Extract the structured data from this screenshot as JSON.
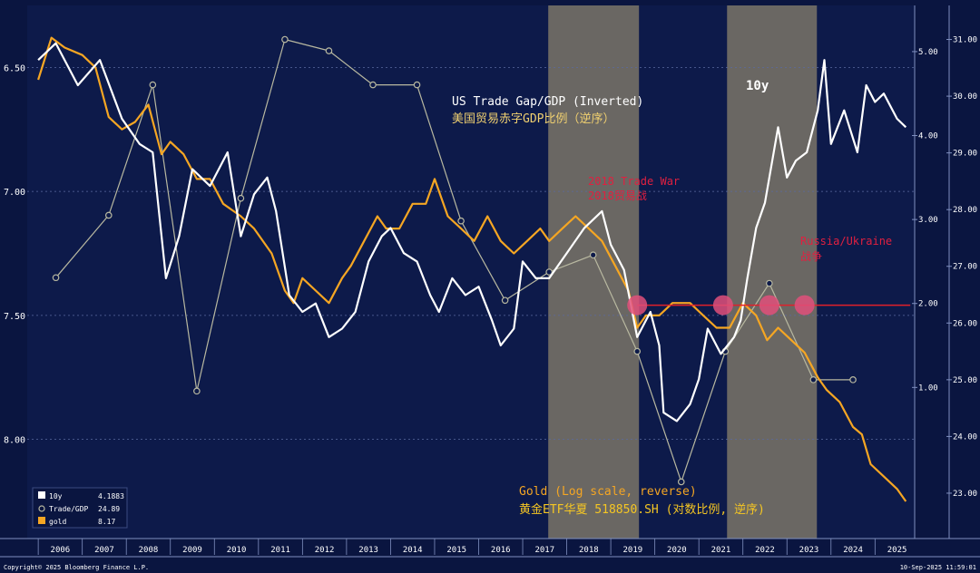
{
  "chart_data": {
    "type": "line",
    "x_tick_labels": [
      "2006",
      "2007",
      "2008",
      "2009",
      "2010",
      "2011",
      "2012",
      "2013",
      "2014",
      "2015",
      "2016",
      "2017",
      "2018",
      "2019",
      "2020",
      "2021",
      "2022",
      "2023",
      "2024",
      "2025"
    ],
    "left_axis": {
      "ticks": [
        "6.50",
        "7.00",
        "7.50",
        "8.00"
      ],
      "range": [
        6.25,
        8.4
      ],
      "note": "gold log scale, reversed"
    },
    "right_outer_axis": {
      "ticks": [
        "31.00",
        "30.00",
        "29.00",
        "28.00",
        "27.00",
        "26.00",
        "25.00",
        "24.00",
        "23.00"
      ],
      "range": [
        31.6,
        22.2
      ],
      "note": "Trade/GDP inverted"
    },
    "right_inner_axis": {
      "ticks": [
        "5.00",
        "4.00",
        "3.00",
        "2.00",
        "1.00"
      ],
      "range": [
        5.55,
        -0.8
      ],
      "note": "10y yield"
    },
    "shaded_periods": [
      [
        2017.58,
        2019.64
      ],
      [
        2021.64,
        2023.68
      ]
    ],
    "horizontal_line": {
      "value": 1.98,
      "axis": "right_inner",
      "from": 2019.6,
      "to": 2025.8,
      "color": "#e0202a"
    },
    "markers": [
      {
        "x": 2019.6,
        "value": 1.98
      },
      {
        "x": 2021.55,
        "value": 1.98
      },
      {
        "x": 2022.6,
        "value": 1.98
      },
      {
        "x": 2023.4,
        "value": 1.98
      }
    ],
    "series": [
      {
        "name": "Trade/GDP",
        "axis": "right_outer",
        "color": "#b8b8a0",
        "points": [
          [
            2006.4,
            26.8
          ],
          [
            2007.6,
            27.9
          ],
          [
            2008.6,
            30.2
          ],
          [
            2009.6,
            24.8
          ],
          [
            2010.6,
            28.2
          ],
          [
            2011.6,
            31.0
          ],
          [
            2012.6,
            30.8
          ],
          [
            2013.6,
            30.2
          ],
          [
            2014.6,
            30.2
          ],
          [
            2015.6,
            27.8
          ],
          [
            2016.6,
            26.4
          ],
          [
            2017.6,
            26.9
          ],
          [
            2018.6,
            27.2
          ],
          [
            2019.6,
            25.5
          ],
          [
            2020.6,
            23.2
          ],
          [
            2021.6,
            25.5
          ],
          [
            2022.6,
            26.7
          ],
          [
            2023.6,
            25.0
          ],
          [
            2024.5,
            25.0
          ]
        ]
      },
      {
        "name": "10y",
        "axis": "right_inner",
        "color": "#ffffff",
        "points": [
          [
            2006.0,
            4.9
          ],
          [
            2006.4,
            5.1
          ],
          [
            2006.9,
            4.6
          ],
          [
            2007.4,
            4.9
          ],
          [
            2007.9,
            4.2
          ],
          [
            2008.3,
            3.9
          ],
          [
            2008.6,
            3.8
          ],
          [
            2008.9,
            2.3
          ],
          [
            2009.2,
            2.8
          ],
          [
            2009.5,
            3.6
          ],
          [
            2009.9,
            3.4
          ],
          [
            2010.3,
            3.8
          ],
          [
            2010.6,
            2.8
          ],
          [
            2010.9,
            3.3
          ],
          [
            2011.2,
            3.5
          ],
          [
            2011.4,
            3.1
          ],
          [
            2011.7,
            2.1
          ],
          [
            2012.0,
            1.9
          ],
          [
            2012.3,
            2.0
          ],
          [
            2012.6,
            1.6
          ],
          [
            2012.9,
            1.7
          ],
          [
            2013.2,
            1.9
          ],
          [
            2013.5,
            2.5
          ],
          [
            2013.8,
            2.8
          ],
          [
            2014.0,
            2.9
          ],
          [
            2014.3,
            2.6
          ],
          [
            2014.6,
            2.5
          ],
          [
            2014.9,
            2.1
          ],
          [
            2015.1,
            1.9
          ],
          [
            2015.4,
            2.3
          ],
          [
            2015.7,
            2.1
          ],
          [
            2016.0,
            2.2
          ],
          [
            2016.3,
            1.8
          ],
          [
            2016.5,
            1.5
          ],
          [
            2016.8,
            1.7
          ],
          [
            2017.0,
            2.5
          ],
          [
            2017.3,
            2.3
          ],
          [
            2017.6,
            2.3
          ],
          [
            2018.0,
            2.6
          ],
          [
            2018.4,
            2.9
          ],
          [
            2018.8,
            3.1
          ],
          [
            2019.0,
            2.7
          ],
          [
            2019.3,
            2.4
          ],
          [
            2019.6,
            1.6
          ],
          [
            2019.9,
            1.9
          ],
          [
            2020.1,
            1.5
          ],
          [
            2020.2,
            0.7
          ],
          [
            2020.5,
            0.6
          ],
          [
            2020.8,
            0.8
          ],
          [
            2021.0,
            1.1
          ],
          [
            2021.2,
            1.7
          ],
          [
            2021.5,
            1.4
          ],
          [
            2021.8,
            1.6
          ],
          [
            2021.95,
            1.8
          ],
          [
            2022.1,
            2.3
          ],
          [
            2022.3,
            2.9
          ],
          [
            2022.5,
            3.2
          ],
          [
            2022.8,
            4.1
          ],
          [
            2023.0,
            3.5
          ],
          [
            2023.2,
            3.7
          ],
          [
            2023.45,
            3.8
          ],
          [
            2023.7,
            4.3
          ],
          [
            2023.85,
            4.9
          ],
          [
            2024.0,
            3.9
          ],
          [
            2024.3,
            4.3
          ],
          [
            2024.6,
            3.8
          ],
          [
            2024.8,
            4.6
          ],
          [
            2025.0,
            4.4
          ],
          [
            2025.2,
            4.5
          ],
          [
            2025.5,
            4.2
          ],
          [
            2025.7,
            4.1
          ]
        ]
      },
      {
        "name": "gold",
        "axis": "left",
        "color": "#f5a623",
        "points": [
          [
            2006.0,
            6.55
          ],
          [
            2006.3,
            6.38
          ],
          [
            2006.6,
            6.42
          ],
          [
            2007.0,
            6.45
          ],
          [
            2007.3,
            6.5
          ],
          [
            2007.6,
            6.7
          ],
          [
            2007.9,
            6.75
          ],
          [
            2008.2,
            6.72
          ],
          [
            2008.5,
            6.65
          ],
          [
            2008.8,
            6.85
          ],
          [
            2009.0,
            6.8
          ],
          [
            2009.3,
            6.85
          ],
          [
            2009.6,
            6.95
          ],
          [
            2009.9,
            6.95
          ],
          [
            2010.2,
            7.05
          ],
          [
            2010.6,
            7.1
          ],
          [
            2010.9,
            7.15
          ],
          [
            2011.3,
            7.25
          ],
          [
            2011.6,
            7.4
          ],
          [
            2011.8,
            7.45
          ],
          [
            2012.0,
            7.35
          ],
          [
            2012.3,
            7.4
          ],
          [
            2012.6,
            7.45
          ],
          [
            2012.9,
            7.35
          ],
          [
            2013.1,
            7.3
          ],
          [
            2013.4,
            7.2
          ],
          [
            2013.7,
            7.1
          ],
          [
            2013.9,
            7.15
          ],
          [
            2014.2,
            7.15
          ],
          [
            2014.5,
            7.05
          ],
          [
            2014.8,
            7.05
          ],
          [
            2015.0,
            6.95
          ],
          [
            2015.3,
            7.1
          ],
          [
            2015.6,
            7.15
          ],
          [
            2015.9,
            7.2
          ],
          [
            2016.2,
            7.1
          ],
          [
            2016.5,
            7.2
          ],
          [
            2016.8,
            7.25
          ],
          [
            2017.1,
            7.2
          ],
          [
            2017.4,
            7.15
          ],
          [
            2017.6,
            7.2
          ],
          [
            2017.9,
            7.15
          ],
          [
            2018.2,
            7.1
          ],
          [
            2018.5,
            7.15
          ],
          [
            2018.8,
            7.2
          ],
          [
            2019.1,
            7.3
          ],
          [
            2019.4,
            7.4
          ],
          [
            2019.6,
            7.55
          ],
          [
            2019.8,
            7.5
          ],
          [
            2020.1,
            7.5
          ],
          [
            2020.4,
            7.45
          ],
          [
            2020.8,
            7.45
          ],
          [
            2021.1,
            7.5
          ],
          [
            2021.4,
            7.55
          ],
          [
            2021.7,
            7.55
          ],
          [
            2022.0,
            7.45
          ],
          [
            2022.3,
            7.5
          ],
          [
            2022.55,
            7.6
          ],
          [
            2022.8,
            7.55
          ],
          [
            2023.1,
            7.6
          ],
          [
            2023.4,
            7.65
          ],
          [
            2023.7,
            7.75
          ],
          [
            2023.9,
            7.8
          ],
          [
            2024.2,
            7.85
          ],
          [
            2024.5,
            7.95
          ],
          [
            2024.7,
            7.98
          ],
          [
            2024.9,
            8.1
          ],
          [
            2025.2,
            8.15
          ],
          [
            2025.5,
            8.2
          ],
          [
            2025.7,
            8.25
          ]
        ]
      }
    ],
    "annotations": [
      {
        "text": "US Trade Gap/GDP (Inverted)",
        "color": "#ffffff"
      },
      {
        "text": "美国贸易赤字GDP比例（逆序）",
        "color": "#f0d070"
      },
      {
        "text": "10y",
        "color": "#ffffff"
      },
      {
        "text": "2018 Trade War",
        "color": "#e02040"
      },
      {
        "text": "2018贸易战",
        "color": "#e02040"
      },
      {
        "text": "Russia/Ukraine",
        "color": "#e02040"
      },
      {
        "text": "战争",
        "color": "#e02040"
      },
      {
        "text": "Gold (Log scale, reverse)",
        "color": "#f5a623"
      },
      {
        "text": "黄金ETF华夏 518850.SH (对数比例, 逆序)",
        "color": "#f5c623"
      }
    ],
    "legend": {
      "placement": "bottom-left",
      "items": [
        {
          "label": "10y",
          "value": "4.1883",
          "color": "#ffffff",
          "symbol": "square"
        },
        {
          "label": "Trade/GDP",
          "value": "24.89",
          "color": "#b8b8a0",
          "symbol": "circle"
        },
        {
          "label": "gold",
          "value": "8.17",
          "color": "#f5a623",
          "symbol": "square"
        }
      ]
    }
  },
  "footer": {
    "copyright": "Copyright© 2025 Bloomberg Finance L.P.",
    "timestamp": "10-Sep-2025 11:59:01"
  },
  "colors": {
    "background": "#0a1540",
    "plot_bg": "#0d1a4a",
    "grid": "#5a6aa0",
    "shade": "#b8a878"
  }
}
